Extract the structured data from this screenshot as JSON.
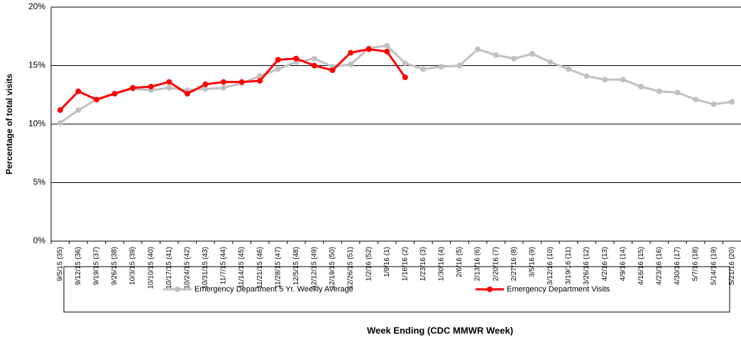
{
  "chart_data": {
    "type": "line",
    "x_label": "Week Ending (CDC MMWR Week)",
    "y_label": "Percentage of total visits",
    "categories": [
      "9/5/15 (35)",
      "9/12/15 (36)",
      "9/19/15 (37)",
      "9/26/15 (38)",
      "10/3/15 (39)",
      "10/10/15 (40)",
      "10/17/15 (41)",
      "10/24/15 (42)",
      "10/31/15 (43)",
      "11/7/15 (44)",
      "11/14/15 (45)",
      "11/21/15 (46)",
      "11/28/15 (47)",
      "12/5/15 (48)",
      "12/12/15 (49)",
      "12/19/15 (50)",
      "12/26/15 (51)",
      "1/2/16 (52)",
      "1/9/16 (1)",
      "1/16/16 (2)",
      "1/23/16 (3)",
      "1/30/16 (4)",
      "2/6/16 (5)",
      "2/13/16 (6)",
      "2/20/16 (7)",
      "2/27/16 (8)",
      "3/5/16 (9)",
      "3/12/16 (10)",
      "3/19/16 (11)",
      "3/26/16 (12)",
      "4/2/16 (13)",
      "4/9/16 (14)",
      "4/16/16 (15)",
      "4/23/16 (16)",
      "4/30/16 (17)",
      "5/7/16 (18)",
      "5/14/16 (19)",
      "5/21/16 (20)"
    ],
    "series": [
      {
        "name": "Emergency Department 5 Yr. Weekly Average",
        "color": "#c0c0c0",
        "values": [
          10.1,
          11.2,
          12.1,
          12.6,
          13.0,
          12.9,
          13.1,
          12.9,
          13.0,
          13.1,
          13.5,
          14.1,
          14.7,
          15.3,
          15.6,
          14.9,
          15.1,
          16.5,
          16.7,
          15.2,
          14.7,
          14.9,
          15.0,
          16.4,
          15.9,
          15.6,
          16.0,
          15.3,
          14.7,
          14.1,
          13.8,
          13.8,
          13.2,
          12.8,
          12.7,
          12.1,
          11.7,
          11.9
        ]
      },
      {
        "name": "Emergency Department Visits",
        "color": "#ff0000",
        "values": [
          11.2,
          12.8,
          12.1,
          12.6,
          13.1,
          13.2,
          13.6,
          12.6,
          13.4,
          13.6,
          13.6,
          13.7,
          15.5,
          15.6,
          15.0,
          14.6,
          16.1,
          16.4,
          16.2,
          14.0,
          null,
          null,
          null,
          null,
          null,
          null,
          null,
          null,
          null,
          null,
          null,
          null,
          null,
          null,
          null,
          null,
          null,
          null
        ]
      }
    ],
    "ylim": [
      0,
      20
    ],
    "yticks": [
      {
        "value": 0,
        "label": "0%"
      },
      {
        "value": 5,
        "label": "5%"
      },
      {
        "value": 10,
        "label": "10%"
      },
      {
        "value": 15,
        "label": "15%"
      },
      {
        "value": 20,
        "label": "20%"
      }
    ],
    "grid": true,
    "legend": "bottom"
  }
}
